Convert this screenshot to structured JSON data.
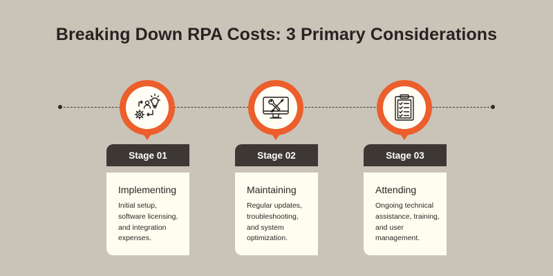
{
  "title": "Breaking Down RPA Costs: 3 Primary Considerations",
  "colors": {
    "background": "#c9c3b8",
    "accent": "#ec5e2b",
    "stage_bar": "#3d3834",
    "card": "#fffcf0"
  },
  "stages": [
    {
      "label": "Stage 01",
      "icon": "implementation-gear-bulb-icon",
      "heading": "Implementing",
      "description": "Initial setup, software licensing, and integration expenses."
    },
    {
      "label": "Stage 02",
      "icon": "maintenance-monitor-tools-icon",
      "heading": "Maintaining",
      "description": "Regular updates, troubleshooting, and system optimization."
    },
    {
      "label": "Stage 03",
      "icon": "clipboard-checklist-icon",
      "heading": "Attending",
      "description": "Ongoing technical assistance, training, and user management."
    }
  ]
}
